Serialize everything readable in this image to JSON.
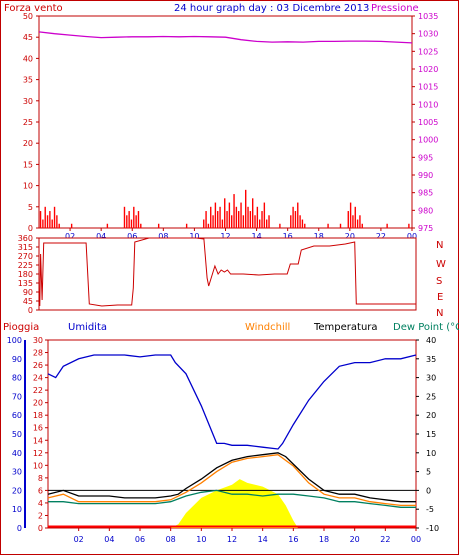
{
  "header": {
    "left_title": "Forza vento",
    "center_title": "24 hour graph day : 03 Dicembre 2013",
    "right_title": "Pressione"
  },
  "wind_dir_letters": [
    "N",
    "W",
    "S",
    "E",
    "N"
  ],
  "bottom_legend": {
    "rain": "Pioggia",
    "humidity": "Umidita",
    "windchill": "Windchill",
    "temperature": "Temperatura",
    "dewpoint": "Dew Point (°C"
  },
  "colors": {
    "frame": "#c00000",
    "grid": "#d8d8d8",
    "wind": "#ff0000",
    "pressure": "#cc00cc",
    "direction": "#cc0000",
    "rain": "#ff0000",
    "humidity": "#0000cc",
    "windchill": "#ff8000",
    "temperature": "#000000",
    "dewpoint": "#008060",
    "solar": "#ffff00",
    "blue_axis": "#0000cc",
    "left_tick_text": "#cc0000",
    "magenta_tick_text": "#cc00cc",
    "right_tick_text": "#000000"
  },
  "chart_data": [
    {
      "type": "bar",
      "name": "wind-pressure",
      "x_ticks": [
        "02",
        "04",
        "06",
        "08",
        "10",
        "12",
        "14",
        "16",
        "18",
        "20",
        "22",
        "00"
      ],
      "xlim": [
        0,
        24
      ],
      "left_axis": {
        "label": "Forza vento",
        "ylim": [
          0,
          50
        ],
        "ticks": [
          0,
          5,
          10,
          15,
          20,
          25,
          30,
          35,
          40,
          45,
          50
        ]
      },
      "right_axis": {
        "label": "Pressione",
        "ylim": [
          975,
          1035
        ],
        "ticks": [
          975,
          980,
          985,
          990,
          995,
          1000,
          1005,
          1010,
          1015,
          1020,
          1025,
          1030,
          1035
        ]
      },
      "wind_bars": [
        {
          "x": 0.1,
          "y": 4
        },
        {
          "x": 0.25,
          "y": 2
        },
        {
          "x": 0.4,
          "y": 5
        },
        {
          "x": 0.55,
          "y": 3
        },
        {
          "x": 0.7,
          "y": 4
        },
        {
          "x": 0.85,
          "y": 2
        },
        {
          "x": 1.0,
          "y": 5
        },
        {
          "x": 1.15,
          "y": 3
        },
        {
          "x": 1.3,
          "y": 1
        },
        {
          "x": 2.1,
          "y": 1
        },
        {
          "x": 4.4,
          "y": 1
        },
        {
          "x": 5.5,
          "y": 5
        },
        {
          "x": 5.65,
          "y": 3
        },
        {
          "x": 5.8,
          "y": 4
        },
        {
          "x": 5.95,
          "y": 2
        },
        {
          "x": 6.1,
          "y": 5
        },
        {
          "x": 6.25,
          "y": 3
        },
        {
          "x": 6.4,
          "y": 4
        },
        {
          "x": 6.55,
          "y": 1
        },
        {
          "x": 7.7,
          "y": 1
        },
        {
          "x": 9.5,
          "y": 1
        },
        {
          "x": 10.6,
          "y": 2
        },
        {
          "x": 10.75,
          "y": 4
        },
        {
          "x": 10.9,
          "y": 1
        },
        {
          "x": 11.05,
          "y": 5
        },
        {
          "x": 11.2,
          "y": 3
        },
        {
          "x": 11.35,
          "y": 6
        },
        {
          "x": 11.5,
          "y": 4
        },
        {
          "x": 11.65,
          "y": 5
        },
        {
          "x": 11.8,
          "y": 2
        },
        {
          "x": 11.95,
          "y": 7
        },
        {
          "x": 12.1,
          "y": 4
        },
        {
          "x": 12.25,
          "y": 6
        },
        {
          "x": 12.4,
          "y": 3
        },
        {
          "x": 12.55,
          "y": 8
        },
        {
          "x": 12.7,
          "y": 5
        },
        {
          "x": 12.85,
          "y": 4
        },
        {
          "x": 13.0,
          "y": 6
        },
        {
          "x": 13.15,
          "y": 3
        },
        {
          "x": 13.3,
          "y": 9
        },
        {
          "x": 13.45,
          "y": 5
        },
        {
          "x": 13.6,
          "y": 4
        },
        {
          "x": 13.75,
          "y": 7
        },
        {
          "x": 13.9,
          "y": 3
        },
        {
          "x": 14.05,
          "y": 5
        },
        {
          "x": 14.2,
          "y": 2
        },
        {
          "x": 14.35,
          "y": 4
        },
        {
          "x": 14.5,
          "y": 6
        },
        {
          "x": 14.65,
          "y": 2
        },
        {
          "x": 14.8,
          "y": 3
        },
        {
          "x": 15.5,
          "y": 1
        },
        {
          "x": 16.2,
          "y": 3
        },
        {
          "x": 16.35,
          "y": 5
        },
        {
          "x": 16.5,
          "y": 4
        },
        {
          "x": 16.65,
          "y": 6
        },
        {
          "x": 16.8,
          "y": 3
        },
        {
          "x": 16.95,
          "y": 2
        },
        {
          "x": 17.1,
          "y": 1
        },
        {
          "x": 18.6,
          "y": 1
        },
        {
          "x": 19.4,
          "y": 1
        },
        {
          "x": 19.9,
          "y": 4
        },
        {
          "x": 20.05,
          "y": 6
        },
        {
          "x": 20.2,
          "y": 3
        },
        {
          "x": 20.35,
          "y": 5
        },
        {
          "x": 20.5,
          "y": 2
        },
        {
          "x": 20.65,
          "y": 3
        },
        {
          "x": 20.8,
          "y": 1
        },
        {
          "x": 22.4,
          "y": 1
        },
        {
          "x": 23.8,
          "y": 1
        }
      ],
      "pressure": [
        [
          0,
          1030.5
        ],
        [
          1,
          1030.0
        ],
        [
          2,
          1029.6
        ],
        [
          3,
          1029.2
        ],
        [
          4,
          1028.9
        ],
        [
          5,
          1029.0
        ],
        [
          6,
          1029.1
        ],
        [
          7,
          1029.1
        ],
        [
          8,
          1029.2
        ],
        [
          9,
          1029.1
        ],
        [
          10,
          1029.2
        ],
        [
          11,
          1029.1
        ],
        [
          12,
          1029.0
        ],
        [
          13,
          1028.3
        ],
        [
          14,
          1027.8
        ],
        [
          15,
          1027.6
        ],
        [
          16,
          1027.7
        ],
        [
          17,
          1027.6
        ],
        [
          18,
          1027.8
        ],
        [
          19,
          1027.8
        ],
        [
          20,
          1027.9
        ],
        [
          21,
          1027.9
        ],
        [
          22,
          1027.8
        ],
        [
          23,
          1027.6
        ],
        [
          24,
          1027.4
        ]
      ]
    },
    {
      "type": "line",
      "name": "wind-direction",
      "xlim": [
        0,
        24
      ],
      "ylim": [
        0,
        360
      ],
      "left_ticks": [
        0,
        45,
        90,
        135,
        180,
        225,
        270,
        315,
        360
      ],
      "x_ticks": [
        "02",
        "04",
        "06",
        "08",
        "10",
        "12",
        "14",
        "16",
        "18",
        "20",
        "22",
        "00"
      ],
      "values": [
        [
          0.05,
          20
        ],
        [
          0.1,
          280
        ],
        [
          0.2,
          50
        ],
        [
          0.3,
          335
        ],
        [
          1.5,
          335
        ],
        [
          3.0,
          335
        ],
        [
          3.2,
          30
        ],
        [
          4.0,
          20
        ],
        [
          5.0,
          25
        ],
        [
          5.9,
          25
        ],
        [
          6.0,
          110
        ],
        [
          6.1,
          340
        ],
        [
          7.0,
          360
        ],
        [
          8.0,
          360
        ],
        [
          9.0,
          360
        ],
        [
          10.0,
          360
        ],
        [
          10.5,
          355
        ],
        [
          10.7,
          160
        ],
        [
          10.8,
          120
        ],
        [
          11.0,
          170
        ],
        [
          11.2,
          220
        ],
        [
          11.4,
          180
        ],
        [
          11.6,
          200
        ],
        [
          11.8,
          190
        ],
        [
          12.0,
          200
        ],
        [
          12.2,
          180
        ],
        [
          13.0,
          180
        ],
        [
          14.0,
          175
        ],
        [
          15.0,
          180
        ],
        [
          15.8,
          180
        ],
        [
          16.0,
          230
        ],
        [
          16.5,
          230
        ],
        [
          16.7,
          300
        ],
        [
          17.5,
          320
        ],
        [
          18.5,
          320
        ],
        [
          19.5,
          330
        ],
        [
          20.1,
          340
        ],
        [
          20.2,
          30
        ],
        [
          20.3,
          30
        ],
        [
          24,
          30
        ]
      ]
    },
    {
      "type": "line",
      "name": "temperature-humidity",
      "xlim": [
        0,
        24
      ],
      "x_ticks": [
        "02",
        "04",
        "06",
        "08",
        "10",
        "12",
        "14",
        "16",
        "18",
        "20",
        "22",
        "00"
      ],
      "left_axis_humidity": {
        "label": "Umidita",
        "ylim": [
          0,
          100
        ],
        "ticks": [
          0,
          10,
          20,
          30,
          40,
          50,
          60,
          70,
          80,
          90,
          100
        ]
      },
      "left_axis_rain": {
        "label": "Pioggia",
        "ylim": [
          0,
          30
        ],
        "ticks": [
          0,
          2,
          4,
          6,
          8,
          10,
          12,
          14,
          16,
          18,
          20,
          22,
          24,
          26,
          28,
          30
        ]
      },
      "right_axis_temp": {
        "label": "Dew Point (°C",
        "ylim": [
          -10,
          40
        ],
        "ticks": [
          -10,
          -5,
          0,
          5,
          10,
          15,
          20,
          25,
          30,
          35,
          40
        ]
      },
      "zero_line": 0,
      "series": [
        {
          "name": "Umidita",
          "axis": "humidity",
          "values": [
            [
              0,
              82
            ],
            [
              0.5,
              80
            ],
            [
              1,
              86
            ],
            [
              2,
              90
            ],
            [
              3,
              92
            ],
            [
              4,
              92
            ],
            [
              5,
              92
            ],
            [
              6,
              91
            ],
            [
              7,
              92
            ],
            [
              8,
              92
            ],
            [
              8.3,
              88
            ],
            [
              9,
              82
            ],
            [
              10,
              65
            ],
            [
              11,
              45
            ],
            [
              11.5,
              45
            ],
            [
              12,
              44
            ],
            [
              13,
              44
            ],
            [
              14,
              43
            ],
            [
              15,
              42
            ],
            [
              15.3,
              45
            ],
            [
              16,
              55
            ],
            [
              17,
              68
            ],
            [
              18,
              78
            ],
            [
              19,
              86
            ],
            [
              20,
              88
            ],
            [
              21,
              88
            ],
            [
              22,
              90
            ],
            [
              23,
              90
            ],
            [
              24,
              92
            ]
          ]
        },
        {
          "name": "Temperatura",
          "axis": "temp",
          "values": [
            [
              0,
              -1
            ],
            [
              1,
              0
            ],
            [
              2,
              -1.5
            ],
            [
              3,
              -1.5
            ],
            [
              4,
              -1.5
            ],
            [
              5,
              -2
            ],
            [
              6,
              -2
            ],
            [
              7,
              -2
            ],
            [
              8,
              -1.5
            ],
            [
              8.5,
              -1
            ],
            [
              9,
              0.5
            ],
            [
              10,
              3
            ],
            [
              11,
              6
            ],
            [
              12,
              8
            ],
            [
              13,
              9
            ],
            [
              14,
              9.5
            ],
            [
              15,
              10
            ],
            [
              15.5,
              9
            ],
            [
              16,
              7
            ],
            [
              17,
              3
            ],
            [
              18,
              0
            ],
            [
              19,
              -1
            ],
            [
              20,
              -1
            ],
            [
              21,
              -2
            ],
            [
              22,
              -2.5
            ],
            [
              23,
              -3
            ],
            [
              24,
              -3
            ]
          ]
        },
        {
          "name": "Windchill",
          "axis": "temp",
          "values": [
            [
              0,
              -2
            ],
            [
              1,
              -1
            ],
            [
              2,
              -3
            ],
            [
              3,
              -3
            ],
            [
              4,
              -3
            ],
            [
              5,
              -3
            ],
            [
              6,
              -3
            ],
            [
              7,
              -3
            ],
            [
              8,
              -2.5
            ],
            [
              9,
              -0.5
            ],
            [
              10,
              2
            ],
            [
              11,
              5
            ],
            [
              12,
              7.5
            ],
            [
              13,
              8.5
            ],
            [
              14,
              9
            ],
            [
              15,
              9.5
            ],
            [
              16,
              6.5
            ],
            [
              17,
              2
            ],
            [
              18,
              -1
            ],
            [
              19,
              -2
            ],
            [
              20,
              -2
            ],
            [
              21,
              -3
            ],
            [
              22,
              -3.5
            ],
            [
              23,
              -4
            ],
            [
              24,
              -4
            ]
          ]
        },
        {
          "name": "Dew Point (°C",
          "axis": "temp",
          "values": [
            [
              0,
              -3
            ],
            [
              1,
              -3
            ],
            [
              2,
              -3.5
            ],
            [
              3,
              -3.5
            ],
            [
              4,
              -3.5
            ],
            [
              5,
              -3.5
            ],
            [
              6,
              -3.5
            ],
            [
              7,
              -3.5
            ],
            [
              8,
              -3
            ],
            [
              9,
              -1.5
            ],
            [
              10,
              -0.5
            ],
            [
              11,
              0
            ],
            [
              12,
              -1
            ],
            [
              13,
              -1
            ],
            [
              14,
              -1.5
            ],
            [
              15,
              -1
            ],
            [
              16,
              -1
            ],
            [
              17,
              -1.5
            ],
            [
              18,
              -2
            ],
            [
              19,
              -3
            ],
            [
              20,
              -3
            ],
            [
              21,
              -3.5
            ],
            [
              22,
              -4
            ],
            [
              23,
              -4.5
            ],
            [
              24,
              -4.5
            ]
          ]
        },
        {
          "name": "solar",
          "axis": "humidity",
          "values": [
            [
              8,
              0
            ],
            [
              8.5,
              2
            ],
            [
              9,
              8
            ],
            [
              10,
              16
            ],
            [
              11,
              20
            ],
            [
              12,
              23
            ],
            [
              12.5,
              26
            ],
            [
              13,
              24
            ],
            [
              14,
              22
            ],
            [
              15,
              18
            ],
            [
              15.5,
              12
            ],
            [
              16,
              4
            ],
            [
              16.3,
              0
            ]
          ]
        }
      ]
    }
  ]
}
